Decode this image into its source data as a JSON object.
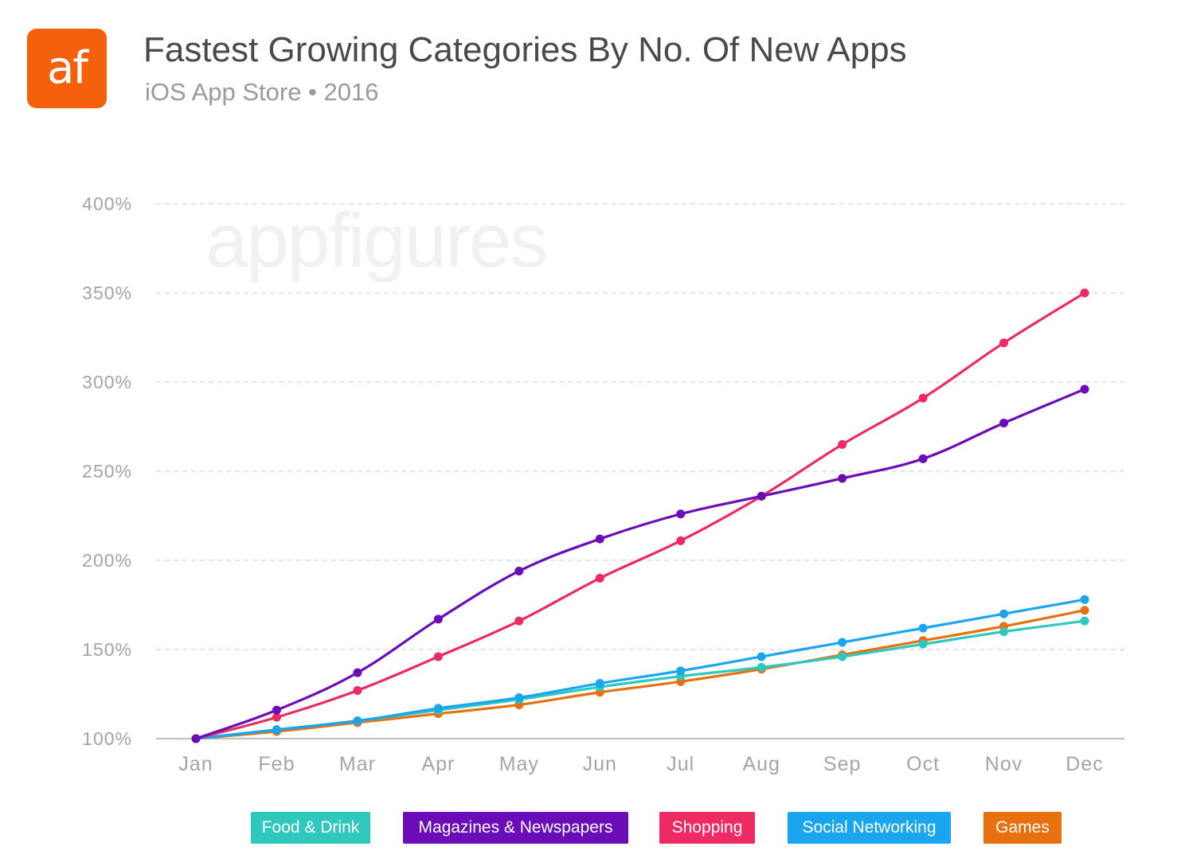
{
  "header": {
    "logo_text": "af",
    "title": "Fastest Growing Categories By No. Of New Apps",
    "subtitle": "iOS App Store • 2016",
    "watermark": "appfigures"
  },
  "chart_data": {
    "type": "line",
    "title": "Fastest Growing Categories By No. Of New Apps",
    "subtitle": "iOS App Store • 2016",
    "xlabel": "",
    "ylabel": "",
    "categories": [
      "Jan",
      "Feb",
      "Mar",
      "Apr",
      "May",
      "Jun",
      "Jul",
      "Aug",
      "Sep",
      "Oct",
      "Nov",
      "Dec"
    ],
    "ylim": [
      100,
      400
    ],
    "yticks": [
      100,
      150,
      200,
      250,
      300,
      350,
      400
    ],
    "ytick_labels": [
      "100%",
      "150%",
      "200%",
      "250%",
      "300%",
      "350%",
      "400%"
    ],
    "grid": true,
    "legend_position": "bottom",
    "series": [
      {
        "name": "Food & Drink",
        "color": "#2ec8bf",
        "values": [
          100,
          105,
          110,
          116,
          122,
          129,
          135,
          140,
          146,
          153,
          160,
          166
        ]
      },
      {
        "name": "Magazines & Newspapers",
        "color": "#6a0cb8",
        "values": [
          100,
          116,
          137,
          167,
          194,
          212,
          226,
          236,
          246,
          257,
          277,
          296
        ]
      },
      {
        "name": "Shopping",
        "color": "#ee2a62",
        "values": [
          100,
          112,
          127,
          146,
          166,
          190,
          211,
          236,
          265,
          291,
          322,
          350
        ]
      },
      {
        "name": "Social Networking",
        "color": "#1aa5ef",
        "values": [
          100,
          105,
          110,
          117,
          123,
          131,
          138,
          146,
          154,
          162,
          170,
          178
        ]
      },
      {
        "name": "Games",
        "color": "#e8700e",
        "values": [
          100,
          104,
          109,
          114,
          119,
          126,
          132,
          139,
          147,
          155,
          163,
          172
        ]
      }
    ]
  }
}
